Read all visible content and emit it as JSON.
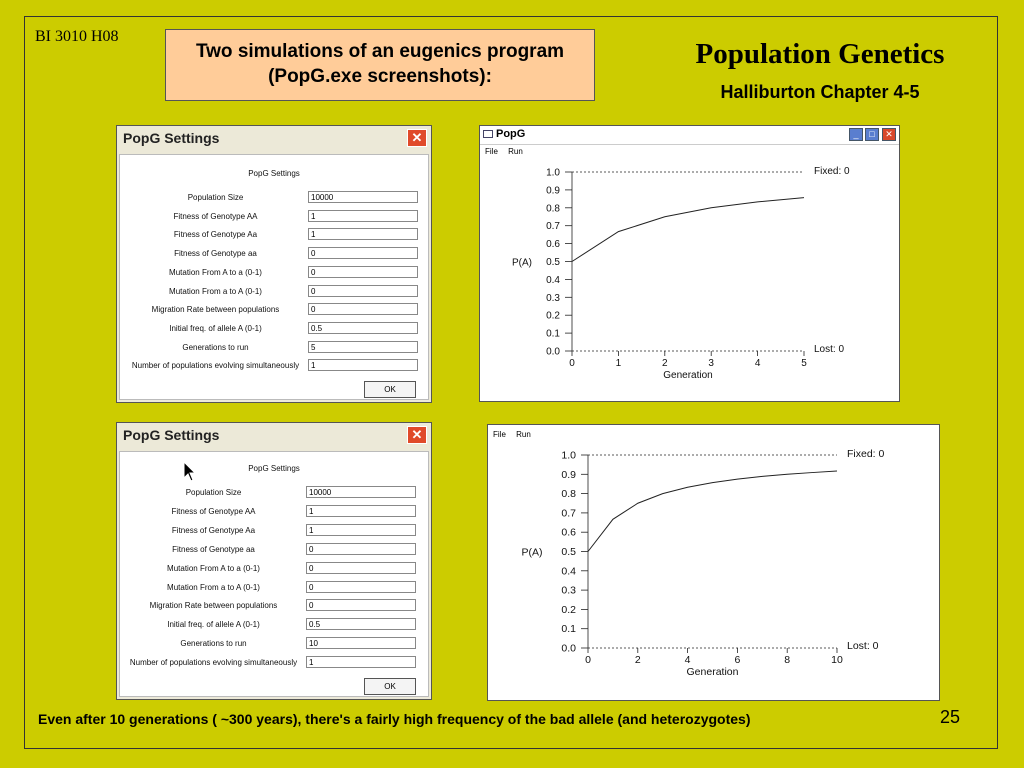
{
  "slide": {
    "course_code": "BI 3010 H08",
    "title_box": {
      "line1": "Two simulations of an eugenics program",
      "line2": "(PopG.exe screenshots):"
    },
    "main_title": "Population Genetics",
    "subtitle": "Halliburton Chapter 4-5",
    "footer": "Even after 10 generations ( ~300 years), there's a fairly high frequency of the bad allele (and heterozygotes)",
    "page_number": "25"
  },
  "settings_dialogs": [
    {
      "title": "PopG Settings",
      "heading": "PopG Settings",
      "ok_label": "OK",
      "fields": [
        {
          "label": "Population Size",
          "value": "10000"
        },
        {
          "label": "Fitness of Genotype AA",
          "value": "1"
        },
        {
          "label": "Fitness of Genotype Aa",
          "value": "1"
        },
        {
          "label": "Fitness of Genotype aa",
          "value": "0"
        },
        {
          "label": "Mutation From A to a (0-1)",
          "value": "0"
        },
        {
          "label": "Mutation From a to A (0-1)",
          "value": "0"
        },
        {
          "label": "Migration Rate between populations",
          "value": "0"
        },
        {
          "label": "Initial freq. of allele A (0-1)",
          "value": "0.5"
        },
        {
          "label": "Generations to run",
          "value": "5"
        },
        {
          "label": "Number of populations evolving simultaneously",
          "value": "1"
        }
      ]
    },
    {
      "title": "PopG Settings",
      "heading": "PopG Settings",
      "ok_label": "OK",
      "fields": [
        {
          "label": "Population Size",
          "value": "10000"
        },
        {
          "label": "Fitness of Genotype AA",
          "value": "1"
        },
        {
          "label": "Fitness of Genotype Aa",
          "value": "1"
        },
        {
          "label": "Fitness of Genotype aa",
          "value": "0"
        },
        {
          "label": "Mutation From A to a (0-1)",
          "value": "0"
        },
        {
          "label": "Mutation From a to A (0-1)",
          "value": "0"
        },
        {
          "label": "Migration Rate between populations",
          "value": "0"
        },
        {
          "label": "Initial freq. of allele A (0-1)",
          "value": "0.5"
        },
        {
          "label": "Generations to run",
          "value": "10"
        },
        {
          "label": "Number of populations evolving simultaneously",
          "value": "1"
        }
      ]
    }
  ],
  "plot_windows": [
    {
      "title": "PopG",
      "menu": [
        "File",
        "Run"
      ]
    },
    {
      "title": "",
      "menu": [
        "File",
        "Run"
      ]
    }
  ],
  "chart_data": [
    {
      "type": "line",
      "xlabel": "Generation",
      "ylabel": "P(A)",
      "xlim": [
        0,
        5
      ],
      "ylim": [
        0,
        1
      ],
      "xticks": [
        0,
        1,
        2,
        3,
        4,
        5
      ],
      "yticks": [
        "0.0",
        "0.1",
        "0.2",
        "0.3",
        "0.4",
        "0.5",
        "0.6",
        "0.7",
        "0.8",
        "0.9",
        "1.0"
      ],
      "fixed_label": "Fixed:",
      "fixed_value": "0",
      "lost_label": "Lost:",
      "lost_value": "0",
      "series": [
        {
          "x": [
            0,
            1,
            2,
            3,
            4,
            5
          ],
          "y": [
            0.5,
            0.667,
            0.75,
            0.8,
            0.833,
            0.857
          ]
        }
      ]
    },
    {
      "type": "line",
      "xlabel": "Generation",
      "ylabel": "P(A)",
      "xlim": [
        0,
        10
      ],
      "ylim": [
        0,
        1
      ],
      "xticks": [
        0,
        2,
        4,
        6,
        8,
        10
      ],
      "yticks": [
        "0.0",
        "0.1",
        "0.2",
        "0.3",
        "0.4",
        "0.5",
        "0.6",
        "0.7",
        "0.8",
        "0.9",
        "1.0"
      ],
      "fixed_label": "Fixed:",
      "fixed_value": "0",
      "lost_label": "Lost:",
      "lost_value": "0",
      "series": [
        {
          "x": [
            0,
            1,
            2,
            3,
            4,
            5,
            6,
            7,
            8,
            9,
            10
          ],
          "y": [
            0.5,
            0.667,
            0.75,
            0.8,
            0.833,
            0.857,
            0.875,
            0.889,
            0.9,
            0.909,
            0.917
          ]
        }
      ]
    }
  ]
}
